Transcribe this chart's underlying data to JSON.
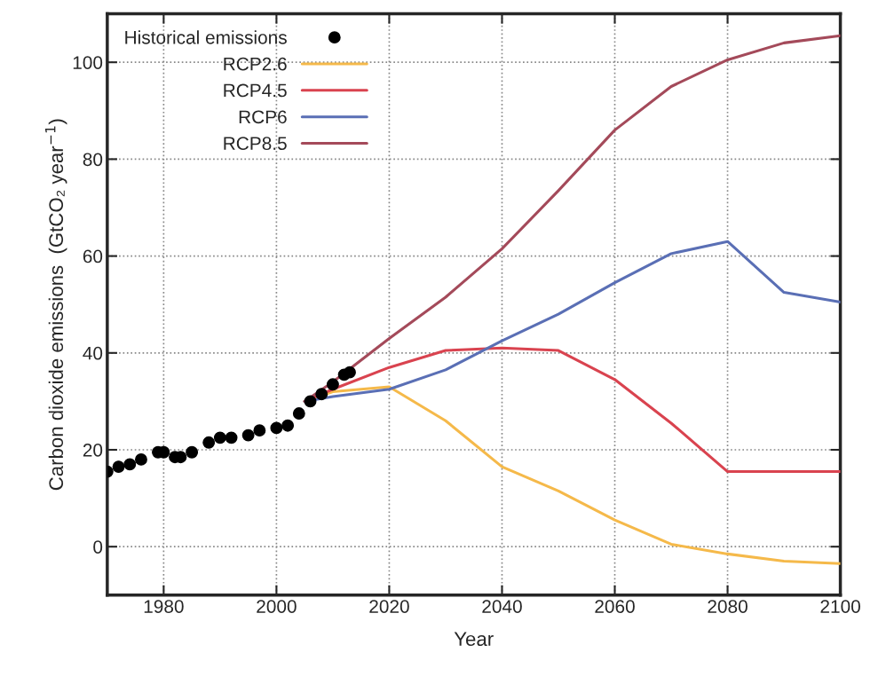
{
  "chart_data": {
    "type": "line",
    "xlabel": "Year",
    "ylabel": "Carbon dioxide emissions  (GtCO₂ year$^{−1}$)",
    "xlim": [
      1970,
      2100
    ],
    "xticks": [
      1980,
      2000,
      2020,
      2040,
      2060,
      2080,
      2100
    ],
    "ylim": [
      -10,
      110
    ],
    "yticks": [
      0,
      20,
      40,
      60,
      80,
      100
    ],
    "grid": true,
    "legend": "top left",
    "series": [
      {
        "name": "Historical emissions",
        "type": "scatter",
        "marker": "circle",
        "color": "#000000",
        "x": [
          1970,
          1972,
          1974,
          1976,
          1979,
          1980,
          1982,
          1983,
          1985,
          1988,
          1990,
          1992,
          1995,
          1997,
          2000,
          2002,
          2004,
          2006,
          2008,
          2010,
          2012,
          2013
        ],
        "values": [
          15.5,
          16.5,
          17,
          18,
          19.5,
          19.5,
          18.5,
          18.5,
          19.5,
          21.5,
          22.5,
          22.5,
          23,
          24,
          24.5,
          25,
          27.5,
          30,
          31.5,
          33.5,
          35.5,
          36
        ]
      },
      {
        "name": "RCP2.6",
        "color": "#f5b94a",
        "x": [
          2005,
          2010,
          2020,
          2030,
          2040,
          2050,
          2060,
          2070,
          2080,
          2090,
          2100
        ],
        "values": [
          30,
          32,
          33,
          26,
          16.5,
          11.5,
          5.5,
          0.5,
          -1.5,
          -3,
          -3.5
        ]
      },
      {
        "name": "RCP4.5",
        "color": "#d9434f",
        "x": [
          2005,
          2010,
          2020,
          2030,
          2040,
          2050,
          2060,
          2070,
          2080,
          2090,
          2100
        ],
        "values": [
          30,
          32.5,
          37,
          40.5,
          41,
          40.5,
          34.5,
          25.5,
          15.5,
          15.5,
          15.5
        ]
      },
      {
        "name": "RCP6",
        "color": "#5a6fb5",
        "x": [
          2005,
          2010,
          2020,
          2030,
          2040,
          2050,
          2060,
          2070,
          2080,
          2090,
          2100
        ],
        "values": [
          30,
          31,
          32.5,
          36.5,
          42.5,
          48,
          54.5,
          60.5,
          63,
          52.5,
          50.5
        ]
      },
      {
        "name": "RCP8.5",
        "color": "#a44a5a",
        "x": [
          2005,
          2010,
          2020,
          2030,
          2040,
          2050,
          2060,
          2070,
          2080,
          2090,
          2100
        ],
        "values": [
          30,
          34,
          43,
          51.5,
          61.5,
          73.5,
          86,
          95,
          100.5,
          104,
          105.5
        ]
      }
    ]
  }
}
